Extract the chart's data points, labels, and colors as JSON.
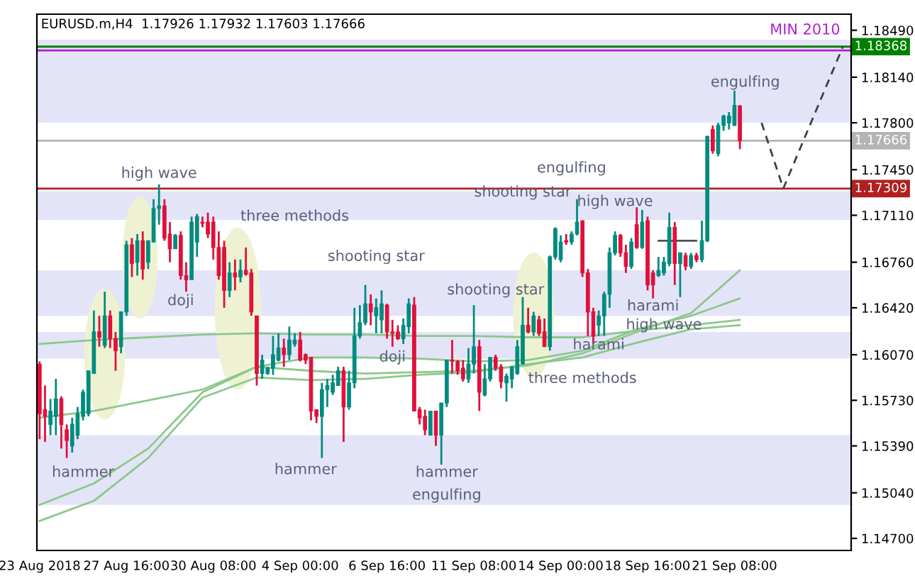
{
  "chart_data": {
    "type": "candlestick",
    "title": "EURUSD.m,H4  1.17926 1.17932 1.17603 1.17666",
    "categories": [
      "23 Aug 2018",
      null,
      null,
      null,
      null,
      null,
      null,
      null,
      null,
      null,
      null,
      null,
      null,
      null,
      null,
      null,
      "27 Aug 16:00",
      null,
      null,
      null,
      null,
      null,
      null,
      null,
      null,
      null,
      null,
      null,
      null,
      null,
      null,
      null,
      "30 Aug 08:00",
      null,
      null,
      null,
      null,
      null,
      null,
      null,
      null,
      null,
      null,
      null,
      null,
      null,
      null,
      null,
      "4 Sep 00:00",
      null,
      null,
      null,
      null,
      null,
      null,
      null,
      null,
      null,
      null,
      null,
      null,
      null,
      null,
      null,
      "6 Sep 16:00",
      null,
      null,
      null,
      null,
      null,
      null,
      null,
      null,
      null,
      null,
      null,
      null,
      null,
      null,
      null,
      "11 Sep 08:00",
      null,
      null,
      null,
      null,
      null,
      null,
      null,
      null,
      null,
      null,
      null,
      null,
      null,
      null,
      null,
      "14 Sep 00:00",
      null,
      null,
      null,
      null,
      null,
      null,
      null,
      null,
      null,
      null,
      null,
      null,
      null,
      null,
      null,
      "18 Sep 16:00",
      null,
      null,
      null,
      null,
      null,
      null,
      null,
      null,
      null,
      null,
      null,
      null,
      null,
      null,
      null,
      "21 Sep 08:00",
      null,
      null,
      null,
      null,
      null,
      null,
      null,
      null,
      null,
      null,
      null,
      null,
      null,
      null,
      null,
      null,
      null,
      null,
      null,
      null,
      null
    ],
    "ohlc": [
      [
        1.16,
        1.1602,
        1.1544,
        1.1563
      ],
      [
        1.1566,
        1.1584,
        1.1542,
        1.1561
      ],
      [
        1.1555,
        1.1574,
        1.1547,
        1.1565
      ],
      [
        1.1561,
        1.1589,
        1.1547,
        1.1574
      ],
      [
        1.1574,
        1.1576,
        1.1537,
        1.1555
      ],
      [
        1.1551,
        1.1555,
        1.153,
        1.1543
      ],
      [
        1.1539,
        1.156,
        1.1534,
        1.1555
      ],
      [
        1.1547,
        1.1568,
        1.1544,
        1.1563
      ],
      [
        1.1561,
        1.1581,
        1.1558,
        1.1579
      ],
      [
        1.1563,
        1.1595,
        1.1561,
        1.1595
      ],
      [
        1.1593,
        1.164,
        1.1593,
        1.1624
      ],
      [
        1.1624,
        1.1636,
        1.1613,
        1.162
      ],
      [
        1.1614,
        1.1654,
        1.1612,
        1.1636
      ],
      [
        1.1636,
        1.164,
        1.1612,
        1.1619
      ],
      [
        1.1619,
        1.1624,
        1.1595,
        1.161
      ],
      [
        1.1613,
        1.1639,
        1.1608,
        1.1639
      ],
      [
        1.1639,
        1.1692,
        1.1636,
        1.1689
      ],
      [
        1.1689,
        1.1694,
        1.1665,
        1.1675
      ],
      [
        1.1676,
        1.1697,
        1.1666,
        1.1692
      ],
      [
        1.1692,
        1.1699,
        1.1663,
        1.1671
      ],
      [
        1.1676,
        1.1692,
        1.1671,
        1.1692
      ],
      [
        1.1691,
        1.1723,
        1.1691,
        1.1716
      ],
      [
        1.1716,
        1.1734,
        1.1704,
        1.1718
      ],
      [
        1.1718,
        1.1723,
        1.1692,
        1.1694
      ],
      [
        1.1697,
        1.1706,
        1.1676,
        1.1686
      ],
      [
        1.1686,
        1.1697,
        1.1686,
        1.1696
      ],
      [
        1.1696,
        1.1699,
        1.1663,
        1.1666
      ],
      [
        1.1666,
        1.1676,
        1.1654,
        1.1663
      ],
      [
        1.1663,
        1.171,
        1.1663,
        1.1706
      ],
      [
        1.1691,
        1.1712,
        1.168,
        1.171
      ],
      [
        1.1706,
        1.171,
        1.1702,
        1.1705
      ],
      [
        1.1706,
        1.1713,
        1.1694,
        1.1697
      ],
      [
        1.1706,
        1.171,
        1.1678,
        1.1687
      ],
      [
        1.1687,
        1.1699,
        1.1663,
        1.1666
      ],
      [
        1.1687,
        1.1692,
        1.1642,
        1.1655
      ],
      [
        1.1655,
        1.1676,
        1.165,
        1.1668
      ],
      [
        1.1668,
        1.1678,
        1.1655,
        1.1665
      ],
      [
        1.1665,
        1.1678,
        1.1661,
        1.167
      ],
      [
        1.167,
        1.1687,
        1.1666,
        1.1667
      ],
      [
        1.1668,
        1.1671,
        1.1636,
        1.1639
      ],
      [
        1.1636,
        1.1636,
        1.1584,
        1.1593
      ],
      [
        1.1593,
        1.1607,
        1.1589,
        1.1603
      ],
      [
        1.1593,
        1.1598,
        1.1592,
        1.1597
      ],
      [
        1.1597,
        1.1621,
        1.1592,
        1.1607
      ],
      [
        1.1603,
        1.1623,
        1.1602,
        1.1612
      ],
      [
        1.1612,
        1.1619,
        1.1598,
        1.1607
      ],
      [
        1.1607,
        1.1628,
        1.1603,
        1.1618
      ],
      [
        1.1615,
        1.1623,
        1.1613,
        1.1618
      ],
      [
        1.1618,
        1.1624,
        1.1602,
        1.1603
      ],
      [
        1.1607,
        1.1608,
        1.16,
        1.1603
      ],
      [
        1.1605,
        1.1605,
        1.1558,
        1.1565
      ],
      [
        1.1566,
        1.1566,
        1.1556,
        1.1561
      ],
      [
        1.1561,
        1.1586,
        1.153,
        1.1581
      ],
      [
        1.1581,
        1.1589,
        1.1568,
        1.1584
      ],
      [
        1.1579,
        1.1592,
        1.1577,
        1.1586
      ],
      [
        1.1584,
        1.1598,
        1.1584,
        1.1595
      ],
      [
        1.1595,
        1.1598,
        1.1542,
        1.1568
      ],
      [
        1.1568,
        1.1595,
        1.1566,
        1.1586
      ],
      [
        1.1586,
        1.1642,
        1.1582,
        1.1621
      ],
      [
        1.1621,
        1.1644,
        1.1619,
        1.1631
      ],
      [
        1.1631,
        1.1659,
        1.1629,
        1.1645
      ],
      [
        1.1645,
        1.1652,
        1.1629,
        1.1639
      ],
      [
        1.1636,
        1.1649,
        1.1623,
        1.1642
      ],
      [
        1.1633,
        1.1655,
        1.1623,
        1.1645
      ],
      [
        1.1644,
        1.1645,
        1.1619,
        1.1624
      ],
      [
        1.1624,
        1.1633,
        1.1613,
        1.1623
      ],
      [
        1.1624,
        1.1629,
        1.1618,
        1.1619
      ],
      [
        1.1619,
        1.1634,
        1.1615,
        1.1629
      ],
      [
        1.1628,
        1.1649,
        1.1623,
        1.1645
      ],
      [
        1.1644,
        1.165,
        1.1565,
        1.1565
      ],
      [
        1.1566,
        1.1568,
        1.1555,
        1.156
      ],
      [
        1.1561,
        1.1566,
        1.1547,
        1.1551
      ],
      [
        1.1547,
        1.1565,
        1.1547,
        1.1565
      ],
      [
        1.1565,
        1.1565,
        1.1539,
        1.1547
      ],
      [
        1.1547,
        1.1571,
        1.1525,
        1.1571
      ],
      [
        1.1571,
        1.1603,
        1.1568,
        1.1603
      ],
      [
        1.1603,
        1.1618,
        1.1593,
        1.1602
      ],
      [
        1.1602,
        1.1603,
        1.1592,
        1.1595
      ],
      [
        1.1597,
        1.1603,
        1.1587,
        1.1589
      ],
      [
        1.1589,
        1.1612,
        1.1586,
        1.16
      ],
      [
        1.16,
        1.1644,
        1.1593,
        1.1613
      ],
      [
        1.1613,
        1.1618,
        1.1565,
        1.1579
      ],
      [
        1.1577,
        1.16,
        1.1576,
        1.1589
      ],
      [
        1.1589,
        1.1605,
        1.1587,
        1.1605
      ],
      [
        1.1605,
        1.1607,
        1.1595,
        1.1597
      ],
      [
        1.1598,
        1.16,
        1.1582,
        1.1587
      ],
      [
        1.1586,
        1.1593,
        1.1572,
        1.1591
      ],
      [
        1.1589,
        1.1598,
        1.1582,
        1.1598
      ],
      [
        1.1593,
        1.1618,
        1.1592,
        1.1613
      ],
      [
        1.16,
        1.165,
        1.16,
        1.1629
      ],
      [
        1.1629,
        1.1642,
        1.1623,
        1.1624
      ],
      [
        1.1624,
        1.1639,
        1.1621,
        1.1636
      ],
      [
        1.1633,
        1.1636,
        1.1621,
        1.1623
      ],
      [
        1.1624,
        1.1634,
        1.1613,
        1.1613
      ],
      [
        1.1613,
        1.1681,
        1.161,
        1.168
      ],
      [
        1.168,
        1.1702,
        1.1678,
        1.1701
      ],
      [
        1.1678,
        1.1696,
        1.1676,
        1.1691
      ],
      [
        1.1692,
        1.1697,
        1.1689,
        1.1691
      ],
      [
        1.1691,
        1.1699,
        1.1689,
        1.1697
      ],
      [
        1.1697,
        1.1723,
        1.1696,
        1.1706
      ],
      [
        1.1707,
        1.1707,
        1.1665,
        1.1668
      ],
      [
        1.1668,
        1.1671,
        1.1621,
        1.1639
      ],
      [
        1.1639,
        1.1642,
        1.1615,
        1.1621
      ],
      [
        1.1629,
        1.164,
        1.1621,
        1.1636
      ],
      [
        1.1636,
        1.1654,
        1.1621,
        1.1652
      ],
      [
        1.1652,
        1.1687,
        1.1642,
        1.1683
      ],
      [
        1.1683,
        1.1699,
        1.1681,
        1.1696
      ],
      [
        1.1696,
        1.1697,
        1.168,
        1.1683
      ],
      [
        1.1683,
        1.1689,
        1.1668,
        1.1673
      ],
      [
        1.1673,
        1.1694,
        1.1671,
        1.1691
      ],
      [
        1.1704,
        1.1717,
        1.1686,
        1.1687
      ],
      [
        1.1687,
        1.1715,
        1.1686,
        1.1706
      ],
      [
        1.1707,
        1.171,
        1.1655,
        1.1659
      ],
      [
        1.1668,
        1.167,
        1.1649,
        1.1659
      ],
      [
        1.1666,
        1.168,
        1.1665,
        1.167
      ],
      [
        1.1668,
        1.168,
        1.1666,
        1.1676
      ],
      [
        1.1675,
        1.1713,
        1.1673,
        1.1702
      ],
      [
        1.1702,
        1.1706,
        1.1659,
        1.1675
      ],
      [
        1.1675,
        1.1683,
        1.165,
        1.1683
      ],
      [
        1.1681,
        1.1683,
        1.167,
        1.1673
      ],
      [
        1.1673,
        1.1683,
        1.1671,
        1.1681
      ],
      [
        1.1681,
        1.1683,
        1.1676,
        1.1678
      ],
      [
        1.1678,
        1.1707,
        1.1676,
        1.1692
      ],
      [
        1.1692,
        1.177,
        1.1691,
        1.177
      ],
      [
        1.1775,
        1.1778,
        1.1757,
        1.1759
      ],
      [
        1.1757,
        1.178,
        1.1755,
        1.1778
      ],
      [
        1.1778,
        1.1786,
        1.1774,
        1.1785
      ],
      [
        1.178,
        1.1788,
        1.1775,
        1.1785
      ],
      [
        1.1778,
        1.1804,
        1.1778,
        1.1793
      ],
      [
        1.17926,
        1.17932,
        1.17603,
        1.17666
      ],
      null,
      null,
      null,
      null,
      null,
      null,
      null,
      null,
      null,
      null,
      null,
      null,
      null,
      null,
      null,
      null,
      null,
      null,
      null,
      null
    ],
    "colors": [
      "#e0103c",
      "#e0103c",
      "#008b80",
      "#008b80",
      "#e0103c",
      "#e0103c",
      "#008b80",
      "#008b80",
      "#008b80",
      "#008b80",
      "#008b80",
      "#e0103c",
      "#008b80",
      "#e0103c",
      "#e0103c",
      "#008b80",
      "#008b80",
      "#e0103c",
      "#008b80",
      "#e0103c",
      "#008b80",
      "#008b80",
      "#008b80",
      "#e0103c",
      "#e0103c",
      "#008b80",
      "#e0103c",
      "#e0103c",
      "#008b80",
      "#008b80",
      "#e0103c",
      "#e0103c",
      "#e0103c",
      "#e0103c",
      "#e0103c",
      "#008b80",
      "#e0103c",
      "#008b80",
      "#e0103c",
      "#e0103c",
      "#e0103c",
      "#008b80",
      "#008b80",
      "#008b80",
      "#008b80",
      "#e0103c",
      "#008b80",
      "#008b80",
      "#e0103c",
      "#e0103c",
      "#e0103c",
      "#e0103c",
      "#008b80",
      "#008b80",
      "#008b80",
      "#008b80",
      "#e0103c",
      "#008b80",
      "#008b80",
      "#008b80",
      "#008b80",
      "#e0103c",
      "#008b80",
      "#008b80",
      "#e0103c",
      "#e0103c",
      "#e0103c",
      "#008b80",
      "#008b80",
      "#e0103c",
      "#e0103c",
      "#e0103c",
      "#008b80",
      "#e0103c",
      "#008b80",
      "#008b80",
      "#e0103c",
      "#e0103c",
      "#e0103c",
      "#008b80",
      "#008b80",
      "#e0103c",
      "#008b80",
      "#008b80",
      "#e0103c",
      "#e0103c",
      "#008b80",
      "#008b80",
      "#008b80",
      "#008b80",
      "#e0103c",
      "#008b80",
      "#e0103c",
      "#e0103c",
      "#008b80",
      "#008b80",
      "#008b80",
      "#e0103c",
      "#008b80",
      "#008b80",
      "#e0103c",
      "#e0103c",
      "#e0103c",
      "#008b80",
      "#008b80",
      "#008b80",
      "#008b80",
      "#e0103c",
      "#e0103c",
      "#008b80",
      "#e0103c",
      "#008b80",
      "#e0103c",
      "#e0103c",
      "#008b80",
      "#008b80",
      "#008b80",
      "#e0103c",
      "#008b80",
      "#e0103c",
      "#008b80",
      "#e0103c",
      "#008b80",
      "#008b80",
      "#e0103c",
      "#008b80",
      "#008b80",
      "#008b80",
      "#008b80",
      "#e0103c",
      null,
      null,
      null,
      null,
      null,
      null,
      null,
      null,
      null,
      null,
      null,
      null,
      null,
      null,
      null,
      null,
      null,
      null,
      null,
      null
    ],
    "series": [
      {
        "type": "line",
        "color": "#8cc88c",
        "values": [
          1.1615,
          null,
          null,
          null,
          null,
          null,
          null,
          null,
          null,
          null,
          1.1618,
          null,
          null,
          null,
          null,
          null,
          null,
          null,
          null,
          null,
          1.162,
          null,
          null,
          null,
          null,
          null,
          null,
          null,
          null,
          null,
          1.1622,
          null,
          null,
          null,
          null,
          null,
          null,
          null,
          null,
          null,
          1.1623,
          null,
          null,
          null,
          null,
          null,
          null,
          null,
          null,
          null,
          1.1622,
          null,
          null,
          null,
          null,
          null,
          null,
          null,
          null,
          null,
          1.1622,
          null,
          null,
          null,
          null,
          null,
          null,
          null,
          null,
          null,
          1.1621,
          null,
          null,
          null,
          null,
          null,
          null,
          null,
          null,
          null,
          1.1621,
          null,
          null,
          null,
          null,
          null,
          null,
          null,
          null,
          null,
          1.162,
          null,
          null,
          null,
          null,
          null,
          null,
          null,
          null,
          null,
          1.162,
          null,
          null,
          null,
          null,
          null,
          null,
          null,
          null,
          null,
          1.1625,
          null,
          null,
          null,
          null,
          null,
          null,
          null,
          null,
          null,
          1.1629,
          null,
          null,
          null,
          null,
          null,
          null,
          null,
          null,
          1.1633,
          null,
          null,
          null,
          null,
          null,
          null,
          null,
          null,
          null,
          null,
          null,
          null,
          null,
          null,
          null,
          null,
          null,
          null,
          null,
          null
        ]
      },
      {
        "type": "line",
        "color": "#8cc88c",
        "values": [
          1.156,
          null,
          null,
          null,
          null,
          null,
          null,
          null,
          null,
          null,
          1.1565,
          null,
          null,
          null,
          null,
          null,
          null,
          null,
          null,
          null,
          1.1573,
          null,
          null,
          null,
          null,
          null,
          null,
          null,
          null,
          null,
          1.1581,
          null,
          null,
          null,
          null,
          null,
          null,
          null,
          null,
          null,
          1.1598,
          null,
          null,
          null,
          null,
          null,
          null,
          null,
          null,
          null,
          1.1605,
          null,
          null,
          null,
          null,
          null,
          null,
          null,
          null,
          null,
          1.1605,
          null,
          null,
          null,
          null,
          null,
          null,
          null,
          null,
          null,
          1.1604,
          null,
          null,
          null,
          null,
          null,
          null,
          null,
          null,
          null,
          1.1602,
          null,
          null,
          null,
          null,
          null,
          null,
          null,
          null,
          null,
          1.1603,
          null,
          null,
          null,
          null,
          null,
          null,
          null,
          null,
          null,
          1.161,
          null,
          null,
          null,
          null,
          null,
          null,
          null,
          null,
          null,
          1.1626,
          null,
          null,
          null,
          null,
          null,
          null,
          null,
          null,
          null,
          1.1636,
          null,
          null,
          null,
          null,
          null,
          null,
          null,
          null,
          1.1649,
          null,
          null,
          null,
          null,
          null,
          null,
          null,
          null,
          null,
          null,
          null,
          null,
          null,
          null,
          null,
          null,
          null,
          null,
          null,
          null
        ]
      },
      {
        "type": "line",
        "color": "#8cc88c",
        "values": [
          1.1495,
          null,
          null,
          null,
          null,
          null,
          null,
          null,
          null,
          null,
          1.1511,
          null,
          null,
          null,
          null,
          null,
          null,
          null,
          null,
          null,
          1.1537,
          null,
          null,
          null,
          null,
          null,
          null,
          null,
          null,
          null,
          1.1579,
          null,
          null,
          null,
          null,
          null,
          null,
          null,
          null,
          null,
          1.1598,
          null,
          null,
          null,
          null,
          null,
          null,
          null,
          null,
          null,
          1.1595,
          null,
          null,
          null,
          null,
          null,
          null,
          null,
          null,
          null,
          1.1593,
          null,
          null,
          null,
          null,
          null,
          null,
          null,
          null,
          null,
          1.1594,
          null,
          null,
          null,
          null,
          null,
          null,
          null,
          null,
          null,
          1.1595,
          null,
          null,
          null,
          null,
          null,
          null,
          null,
          null,
          null,
          1.1599,
          null,
          null,
          null,
          null,
          null,
          null,
          null,
          null,
          null,
          1.1608,
          null,
          null,
          null,
          null,
          null,
          null,
          null,
          null,
          null,
          1.1624,
          null,
          null,
          null,
          null,
          null,
          null,
          null,
          null,
          null,
          1.1638,
          null,
          null,
          null,
          null,
          null,
          null,
          null,
          null,
          1.167,
          null,
          null,
          null,
          null,
          null,
          null,
          null,
          null,
          null,
          null,
          null,
          null,
          null,
          null,
          null,
          null,
          null,
          null,
          null,
          null
        ]
      },
      {
        "type": "line",
        "color": "#8cc88c",
        "values": [
          1.1483,
          null,
          null,
          null,
          null,
          null,
          null,
          null,
          null,
          null,
          1.1498,
          null,
          null,
          null,
          null,
          null,
          null,
          null,
          null,
          null,
          1.153,
          null,
          null,
          null,
          null,
          null,
          null,
          null,
          null,
          null,
          1.1575,
          null,
          null,
          null,
          null,
          null,
          null,
          null,
          null,
          null,
          1.159,
          null,
          null,
          null,
          null,
          null,
          null,
          null,
          null,
          null,
          1.1588,
          null,
          null,
          null,
          null,
          null,
          null,
          null,
          null,
          null,
          1.1589,
          null,
          null,
          null,
          null,
          null,
          null,
          null,
          null,
          null,
          1.1592,
          null,
          null,
          null,
          null,
          null,
          null,
          null,
          null,
          null,
          1.1594,
          null,
          null,
          null,
          null,
          null,
          null,
          null,
          null,
          null,
          1.16,
          null,
          null,
          null,
          null,
          null,
          null,
          null,
          null,
          null,
          1.1605,
          null,
          null,
          null,
          null,
          null,
          null,
          null,
          null,
          null,
          1.1616,
          null,
          null,
          null,
          null,
          null,
          null,
          null,
          null,
          null,
          1.1626,
          null,
          null,
          null,
          null,
          null,
          null,
          null,
          null,
          1.1629,
          null,
          null,
          null,
          null,
          null,
          null,
          null,
          null,
          null,
          null,
          null,
          null,
          null,
          null,
          null,
          null,
          null,
          null,
          null,
          null
        ]
      },
      {
        "type": "line",
        "color": "#505050",
        "values": [
          null,
          null,
          null,
          null,
          null,
          null,
          null,
          null,
          null,
          null,
          null,
          null,
          null,
          null,
          null,
          null,
          null,
          null,
          null,
          null,
          null,
          null,
          null,
          null,
          null,
          null,
          null,
          null,
          null,
          null,
          null,
          null,
          null,
          null,
          null,
          null,
          null,
          null,
          null,
          null,
          null,
          null,
          null,
          null,
          null,
          null,
          null,
          null,
          null,
          null,
          null,
          null,
          null,
          null,
          null,
          null,
          null,
          null,
          null,
          null,
          null,
          null,
          null,
          null,
          null,
          null,
          null,
          null,
          null,
          null,
          null,
          null,
          null,
          null,
          null,
          null,
          null,
          null,
          null,
          null,
          null,
          null,
          null,
          null,
          null,
          null,
          null,
          null,
          null,
          null,
          null,
          null,
          null,
          null,
          null,
          null,
          null,
          null,
          null,
          null,
          null,
          null,
          null,
          null,
          null,
          null,
          null,
          null,
          null,
          null,
          null,
          null,
          null,
          null,
          1.1692,
          null,
          null,
          null,
          null,
          null,
          null,
          1.1692,
          null,
          null,
          null,
          null,
          null,
          null,
          null,
          null,
          null,
          null,
          null,
          null,
          null,
          null,
          null,
          null,
          null,
          null,
          null,
          null,
          null,
          null,
          null,
          null,
          null,
          null,
          null,
          null
        ]
      },
      {
        "type": "line",
        "color": "#404040",
        "line_style": "dashed",
        "values": [
          null,
          null,
          null,
          null,
          null,
          null,
          null,
          null,
          null,
          null,
          null,
          null,
          null,
          null,
          null,
          null,
          null,
          null,
          null,
          null,
          null,
          null,
          null,
          null,
          null,
          null,
          null,
          null,
          null,
          null,
          null,
          null,
          null,
          null,
          null,
          null,
          null,
          null,
          null,
          null,
          null,
          null,
          null,
          null,
          null,
          null,
          null,
          null,
          null,
          null,
          null,
          null,
          null,
          null,
          null,
          null,
          null,
          null,
          null,
          null,
          null,
          null,
          null,
          null,
          null,
          null,
          null,
          null,
          null,
          null,
          null,
          null,
          null,
          null,
          null,
          null,
          null,
          null,
          null,
          null,
          null,
          null,
          null,
          null,
          null,
          null,
          null,
          null,
          null,
          null,
          null,
          null,
          null,
          null,
          null,
          null,
          null,
          null,
          null,
          null,
          null,
          null,
          null,
          null,
          null,
          null,
          null,
          null,
          null,
          null,
          null,
          null,
          null,
          null,
          null,
          null,
          null,
          null,
          null,
          null,
          null,
          null,
          null,
          null,
          null,
          null,
          null,
          null,
          null,
          null,
          null,
          null,
          null,
          1.178,
          null,
          null,
          null,
          1.1731,
          null,
          null,
          null,
          null,
          null,
          null,
          null,
          null,
          null,
          null,
          1.1837,
          null
        ]
      }
    ],
    "ylim": [
      1.1461,
      1.1861
    ],
    "yticks": [
      {
        "value": 1.1849,
        "label": "1.18490"
      },
      {
        "value": 1.1814,
        "label": "1.18140"
      },
      {
        "value": 1.178,
        "label": "1.17800"
      },
      {
        "value": 1.1745,
        "label": "1.17450"
      },
      {
        "value": 1.1711,
        "label": "1.17110"
      },
      {
        "value": 1.1676,
        "label": "1.16760"
      },
      {
        "value": 1.1642,
        "label": "1.16420"
      },
      {
        "value": 1.1607,
        "label": "1.16070"
      },
      {
        "value": 1.1573,
        "label": "1.15730"
      },
      {
        "value": 1.1539,
        "label": "1.15390"
      },
      {
        "value": 1.1504,
        "label": "1.15040"
      },
      {
        "value": 1.147,
        "label": "1.14700"
      }
    ],
    "bands": [
      {
        "axis": "y",
        "from": 1.178,
        "to": 1.1842,
        "color": "#e4e4f8"
      },
      {
        "axis": "y",
        "from": 1.17075,
        "to": 1.1729,
        "color": "#e4e4f8"
      },
      {
        "axis": "y",
        "from": 1.1636,
        "to": 1.167,
        "color": "#e4e4f8"
      },
      {
        "axis": "y",
        "from": 1.1604,
        "to": 1.1624,
        "color": "#e4e4f8"
      },
      {
        "axis": "y",
        "from": 1.1495,
        "to": 1.1547,
        "color": "#e4e4f8"
      }
    ],
    "ref_lines": [
      {
        "axis": "y",
        "value": 1.18368,
        "label": "1.18368",
        "color": "#008000"
      },
      {
        "axis": "y",
        "value": 1.1834,
        "color": "#b020d0"
      },
      {
        "axis": "y",
        "value": 1.17666,
        "label": "1.17666",
        "color": "#b4b4b4"
      },
      {
        "axis": "y",
        "value": 1.17309,
        "label": "1.17309",
        "color": "#b02020"
      }
    ],
    "annotations": [
      "high wave",
      "doji",
      "three methods",
      "shooting star",
      "hammer",
      "hammer",
      "doji",
      "shooting star",
      "hammer",
      "engulfing",
      "engulfing",
      "shooting star",
      "high wave",
      "three methods",
      "harami",
      "harami",
      "high wave",
      "engulfing",
      "MIN 2010"
    ]
  }
}
